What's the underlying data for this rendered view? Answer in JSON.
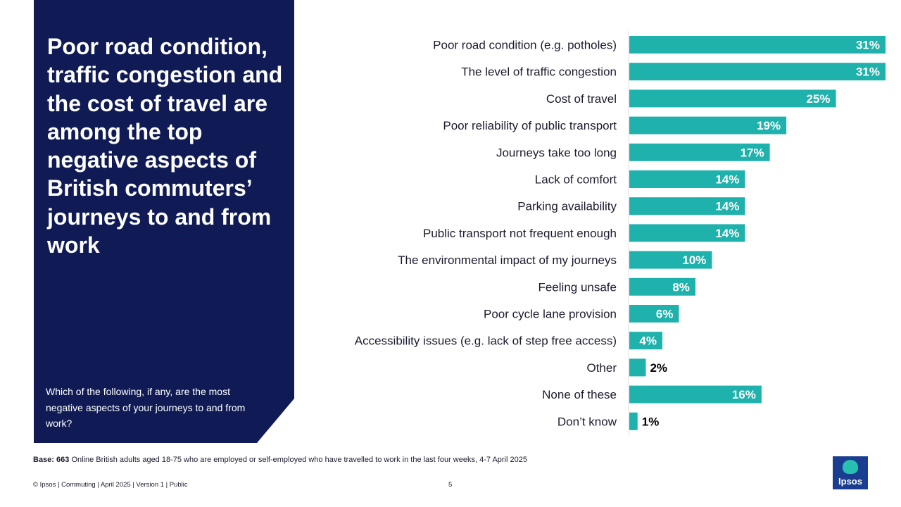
{
  "panel": {
    "title": "Poor road condition, traffic congestion and the cost of travel are among the top negative aspects of British commuters’ journeys to and from work",
    "question": "Which of the following, if any, are the most negative aspects of your journeys to and from work?"
  },
  "chart_data": {
    "type": "bar",
    "orientation": "horizontal",
    "title": "",
    "xlabel": "",
    "ylabel": "",
    "xlim": [
      0,
      31
    ],
    "unit": "%",
    "categories": [
      "Poor road condition (e.g. potholes)",
      "The level of traffic congestion",
      "Cost of travel",
      "Poor reliability of public transport",
      "Journeys take too long",
      "Lack of comfort",
      "Parking availability",
      "Public transport not frequent enough",
      "The environmental impact of my journeys",
      "Feeling unsafe",
      "Poor cycle lane provision",
      "Accessibility issues (e.g. lack of step free access)",
      "Other",
      "None of these",
      "Don’t know"
    ],
    "values": [
      31,
      31,
      25,
      19,
      17,
      14,
      14,
      14,
      10,
      8,
      6,
      4,
      2,
      16,
      1
    ],
    "labels": [
      "31%",
      "31%",
      "25%",
      "19%",
      "17%",
      "14%",
      "14%",
      "14%",
      "10%",
      "8%",
      "6%",
      "4%",
      "2%",
      "16%",
      "1%"
    ],
    "bar_color": "#1fb1ab"
  },
  "base": {
    "label": "Base:",
    "count": "663",
    "text": "Online British adults aged 18-75 who are employed or self-employed who have travelled to work in the last four weeks, 4-7 April 2025"
  },
  "footer": {
    "text": "© Ipsos | Commuting | April 2025 | Version 1 | Public",
    "page_number": "5"
  },
  "logo": {
    "text": "Ipsos"
  },
  "colors": {
    "panel": "#101b56",
    "bar": "#1fb1ab",
    "logo": "#1a3d8f"
  }
}
